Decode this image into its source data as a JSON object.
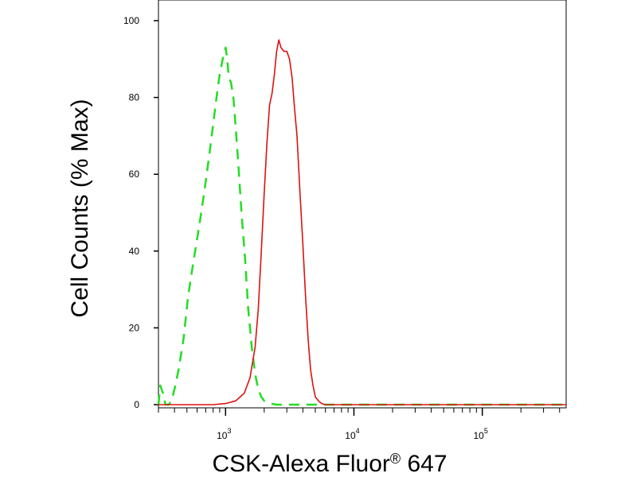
{
  "chart_data": {
    "type": "line",
    "title": "",
    "xlabel": "CSK-Alexa Fluor",
    "xlabel_superscript": "®",
    "xlabel_suffix": " 647",
    "ylabel": "Cell Counts (% Max)",
    "x_scale": "log",
    "xlim": [
      300,
      450000
    ],
    "ylim": [
      0,
      100
    ],
    "grid": false,
    "legend": "none",
    "y_ticks": [
      0,
      20,
      40,
      60,
      80,
      100
    ],
    "y_tick_labels": [
      "0",
      "20",
      "40",
      "60",
      "80",
      "100"
    ],
    "x_major_ticks": [
      1000,
      10000,
      100000
    ],
    "x_tick_labels": [
      {
        "base": "10",
        "exp": "3"
      },
      {
        "base": "10",
        "exp": "4"
      },
      {
        "base": "10",
        "exp": "5"
      }
    ],
    "series": [
      {
        "color": "#22dd22",
        "style": "dashed",
        "x": [
          300,
          310,
          325,
          340,
          360,
          380,
          400,
          430,
          470,
          510,
          560,
          620,
          680,
          740,
          800,
          850,
          900,
          950,
          1000,
          1030,
          1060,
          1100,
          1150,
          1200,
          1260,
          1330,
          1420,
          1500,
          1600,
          1700,
          1800,
          1900,
          2000,
          2150,
          2300,
          2500,
          2700,
          3000,
          3500,
          4000,
          5000,
          7000,
          10000,
          100000,
          450000
        ],
        "y": [
          0,
          5,
          3,
          0,
          0,
          1,
          4,
          9,
          17,
          28,
          37,
          46,
          55,
          64,
          73,
          80,
          86,
          90,
          93,
          90,
          85,
          84,
          80,
          72,
          62,
          50,
          38,
          25,
          15,
          8,
          4,
          2,
          1,
          0.5,
          0.2,
          0,
          0,
          0,
          0,
          0,
          0,
          0,
          0,
          0,
          0
        ]
      },
      {
        "color": "#dd1111",
        "style": "solid",
        "x": [
          300,
          800,
          1000,
          1200,
          1400,
          1550,
          1700,
          1800,
          1900,
          2000,
          2100,
          2200,
          2300,
          2400,
          2500,
          2600,
          2700,
          2850,
          3000,
          3150,
          3300,
          3450,
          3600,
          3800,
          4000,
          4200,
          4400,
          4600,
          4800,
          5000,
          5300,
          5600,
          6000,
          7000,
          10000,
          100000,
          450000
        ],
        "y": [
          0,
          0,
          0.3,
          1,
          3,
          7,
          15,
          25,
          40,
          55,
          68,
          78,
          81,
          86,
          92,
          95,
          93,
          92,
          92,
          90,
          85,
          77,
          70,
          55,
          42,
          28,
          17,
          9,
          5,
          2,
          1,
          0.3,
          0,
          0,
          0,
          0,
          0
        ]
      }
    ]
  }
}
